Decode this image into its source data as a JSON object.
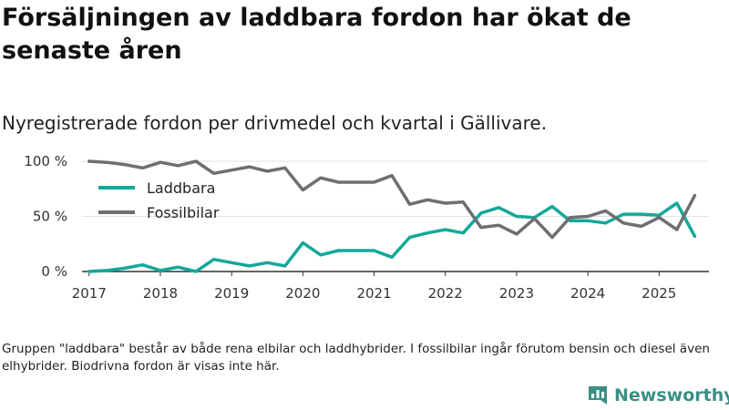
{
  "header": {
    "title": "Försäljningen av laddbara fordon har ökat de senaste åren",
    "subtitle": "Nyregistrerade fordon per drivmedel och kvartal i Gällivare."
  },
  "footnote": "Gruppen \"laddbara\" består av både rena elbilar och laddhybrider. I fossilbilar ingår förutom bensin och diesel även elhybrider. Biodrivna fordon är visas inte här.",
  "brand": {
    "name": "Newsworthy",
    "icon": "newsworthy-logo-icon",
    "color": "#3a8f84"
  },
  "chart_data": {
    "type": "line",
    "title": "Nyregistrerade fordon per drivmedel och kvartal i Gällivare.",
    "xlabel": "",
    "ylabel": "",
    "ylim": [
      0,
      100
    ],
    "xlim": [
      2016.9,
      2025.7
    ],
    "y_ticks": [
      0,
      50,
      100
    ],
    "y_tick_labels": [
      "0 %",
      "50 %",
      "100 %"
    ],
    "x_ticks": [
      2017,
      2018,
      2019,
      2020,
      2021,
      2022,
      2023,
      2024,
      2025
    ],
    "x_tick_labels": [
      "2017",
      "2018",
      "2019",
      "2020",
      "2021",
      "2022",
      "2023",
      "2024",
      "2025"
    ],
    "grid": true,
    "legend_position": "top-left",
    "x": [
      2017.0,
      2017.25,
      2017.5,
      2017.75,
      2018.0,
      2018.25,
      2018.5,
      2018.75,
      2019.0,
      2019.25,
      2019.5,
      2019.75,
      2020.0,
      2020.25,
      2020.5,
      2020.75,
      2021.0,
      2021.25,
      2021.5,
      2021.75,
      2022.0,
      2022.25,
      2022.5,
      2022.75,
      2023.0,
      2023.25,
      2023.5,
      2023.75,
      2024.0,
      2024.25,
      2024.5,
      2024.75,
      2025.0,
      2025.25,
      2025.5
    ],
    "series": [
      {
        "name": "Laddbara",
        "color": "#14a89a",
        "values": [
          0,
          1,
          3,
          6,
          1,
          4,
          0,
          11,
          8,
          5,
          8,
          5,
          26,
          15,
          19,
          19,
          19,
          13,
          31,
          35,
          38,
          35,
          53,
          58,
          50,
          49,
          59,
          46,
          46,
          44,
          52,
          52,
          51,
          62,
          32
        ]
      },
      {
        "name": "Fossilbilar",
        "color": "#6e6e73",
        "values": [
          100,
          99,
          97,
          94,
          99,
          96,
          100,
          89,
          92,
          95,
          91,
          94,
          74,
          85,
          81,
          81,
          81,
          87,
          61,
          65,
          62,
          63,
          40,
          42,
          34,
          48,
          31,
          49,
          50,
          55,
          44,
          41,
          49,
          38,
          69
        ]
      }
    ]
  }
}
